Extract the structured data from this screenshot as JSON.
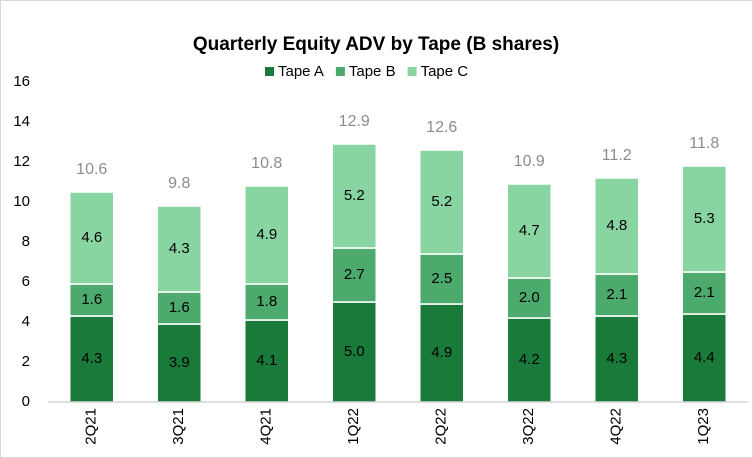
{
  "chart_data": {
    "type": "stacked_bar",
    "title": "Quarterly Equity ADV by Tape (B shares)",
    "categories": [
      "2Q21",
      "3Q21",
      "4Q21",
      "1Q22",
      "2Q22",
      "3Q22",
      "4Q22",
      "1Q23"
    ],
    "series": [
      {
        "name": "Tape A",
        "color": "#1a7a3a",
        "values": [
          4.3,
          3.9,
          4.1,
          5,
          4.9,
          4.2,
          4.3,
          4.4
        ],
        "value_labels": [
          "4.3",
          "3.9",
          "4.1",
          "5.0",
          "4.9",
          "4.2",
          "4.3",
          "4.4"
        ]
      },
      {
        "name": "Tape B",
        "color": "#4caa6c",
        "values": [
          1.6,
          1.6,
          1.8,
          2.7,
          2.5,
          2,
          2.1,
          2.1
        ],
        "value_labels": [
          "1.6",
          "1.6",
          "1.8",
          "2.7",
          "2.5",
          "2.0",
          "2.1",
          "2.1"
        ]
      },
      {
        "name": "Tape C",
        "color": "#88d5a2",
        "values": [
          4.6,
          4.3,
          4.9,
          5.2,
          5.2,
          4.7,
          4.8,
          5.3
        ],
        "value_labels": [
          "4.6",
          "4.3",
          "4.9",
          "5.2",
          "5.2",
          "4.7",
          "4.8",
          "5.3"
        ]
      }
    ],
    "totals": [
      10.6,
      9.8,
      10.8,
      12.9,
      12.6,
      10.9,
      11.2,
      11.8
    ],
    "ylim": [
      0,
      16
    ],
    "yticks": [
      0,
      2,
      4,
      6,
      8,
      10,
      12,
      14,
      16
    ],
    "grid": false
  }
}
